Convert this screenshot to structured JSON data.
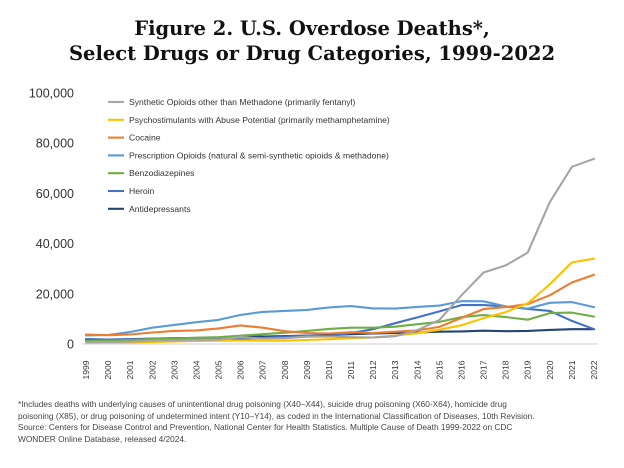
{
  "title_line1": "Figure 2. U.S. Overdose Deaths*,",
  "title_line2": "Select Drugs or Drug Categories, 1999-2022",
  "footnote": {
    "line1": "*Includes deaths with underlying causes of unintentional drug poisoning (X40–X44), suicide drug poisoning (X60-X64), homicide drug",
    "line2": "poisoning (X85), or drug poisoning of undetermined intent (Y10–Y14), as coded in the International Classification of Diseases, 10th Revision.",
    "line3": "Source: Centers for Disease Control and Prevention, National Center for Health Statistics. Multiple Cause of Death 1999-2022 on CDC",
    "line4": "WONDER Online Database, released 4/2024."
  },
  "chart_data": {
    "type": "line",
    "title": "Figure 2. U.S. Overdose Deaths*, Select Drugs or Drug Categories, 1999-2022",
    "xlabel": "",
    "ylabel": "",
    "ylim": [
      0,
      100000
    ],
    "yticks": [
      0,
      20000,
      40000,
      60000,
      80000,
      100000
    ],
    "ytick_labels": [
      "0",
      "20,000",
      "40,000",
      "60,000",
      "80,000",
      "100,000"
    ],
    "grid": false,
    "legend_position": "top-left",
    "categories": [
      "1999",
      "2000",
      "2001",
      "2002",
      "2003",
      "2004",
      "2005",
      "2006",
      "2007",
      "2008",
      "2009",
      "2010",
      "2011",
      "2012",
      "2013",
      "2014",
      "2015",
      "2016",
      "2017",
      "2018",
      "2019",
      "2020",
      "2021",
      "2022"
    ],
    "series": [
      {
        "name": "Synthetic Opioids other than Methadone (primarily fentanyl)",
        "color": "#a5a5a5",
        "values": [
          730,
          780,
          960,
          1300,
          1400,
          1660,
          1740,
          2700,
          2200,
          2300,
          2900,
          3000,
          2700,
          2600,
          3100,
          5500,
          9600,
          19400,
          28500,
          31300,
          36400,
          56500,
          70600,
          73800
        ]
      },
      {
        "name": "Psychostimulants with Abuse Potential (primarily methamphetamine)",
        "color": "#ffc000",
        "values": [
          550,
          580,
          650,
          850,
          1000,
          1200,
          1300,
          1400,
          1300,
          1300,
          1600,
          1900,
          2300,
          2600,
          3400,
          4300,
          5700,
          7500,
          10300,
          12700,
          16200,
          23800,
          32500,
          34000
        ]
      },
      {
        "name": "Cocaine",
        "color": "#ed7d31",
        "values": [
          3800,
          3500,
          3800,
          4600,
          5200,
          5400,
          6200,
          7400,
          6500,
          5100,
          4400,
          4200,
          4700,
          4400,
          4900,
          5400,
          6800,
          10400,
          13900,
          14700,
          15900,
          19400,
          24500,
          27600
        ]
      },
      {
        "name": "Prescription Opioids (natural & semi-synthetic opioids & methadone)",
        "color": "#5b9bd5",
        "values": [
          3400,
          3600,
          4800,
          6500,
          7600,
          8700,
          9600,
          11600,
          12800,
          13200,
          13600,
          14600,
          15100,
          14200,
          14100,
          14800,
          15300,
          17100,
          17000,
          15000,
          14100,
          16400,
          16700,
          14700
        ]
      },
      {
        "name": "Benzodiazepines",
        "color": "#70ad47",
        "values": [
          1100,
          1300,
          1600,
          2000,
          2200,
          2500,
          2700,
          3300,
          3900,
          4500,
          5200,
          6000,
          6500,
          6500,
          6900,
          7900,
          8800,
          10700,
          11500,
          10700,
          9700,
          12300,
          12500,
          10900
        ]
      },
      {
        "name": "Heroin",
        "color": "#4472c4",
        "values": [
          2000,
          1800,
          1800,
          2100,
          2100,
          1900,
          2000,
          2100,
          2400,
          3000,
          3300,
          3000,
          4400,
          5900,
          8300,
          10600,
          13000,
          15500,
          15500,
          15000,
          14000,
          13200,
          9200,
          5900
        ]
      },
      {
        "name": "Antidepressants",
        "color": "#264478",
        "values": [
          1700,
          1800,
          1900,
          2100,
          2300,
          2400,
          2500,
          2900,
          3000,
          3200,
          3300,
          3600,
          3900,
          4200,
          4400,
          4600,
          4900,
          5000,
          5300,
          5100,
          5200,
          5600,
          5900,
          5900
        ]
      }
    ]
  }
}
